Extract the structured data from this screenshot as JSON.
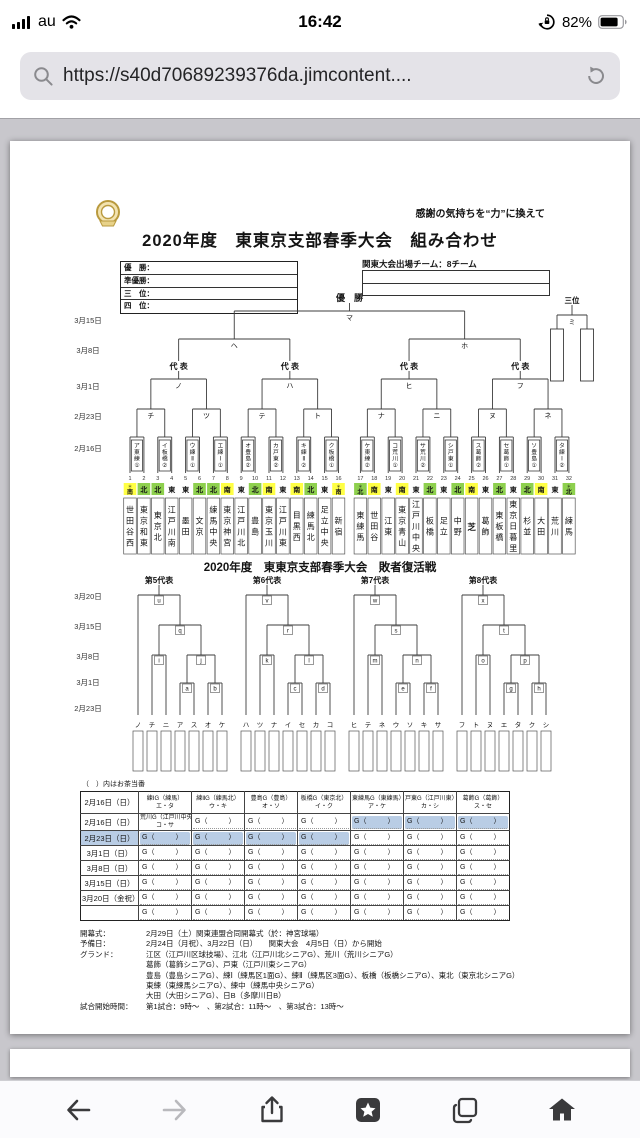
{
  "status_bar": {
    "carrier": "au",
    "time": "16:42",
    "battery_percent": "82%"
  },
  "url_bar": {
    "url": "https://s40d70689239376da.jimcontent...."
  },
  "document": {
    "slogan": "感謝の気持ちを“力”に換えて",
    "title": "2020年度　東東京支部春季大会　組み合わせ",
    "results_table": {
      "rows": [
        "優　勝：",
        "準優勝：",
        "三　位：",
        "四　位："
      ]
    },
    "kanto_note": "関東大会出場チーム：8チーム",
    "main_bracket": {
      "champion_label": "優　勝",
      "representative_label": "代 表",
      "third_place_label": "三位",
      "third_place_game": "ミ",
      "dates": [
        "3月15日",
        "3月8日",
        "3月1日",
        "2月23日",
        "2月16日"
      ],
      "final": "マ",
      "semifinals": [
        "ヘ",
        "ホ"
      ],
      "quarterfinals": [
        "ノ",
        "ハ",
        "ヒ",
        "フ"
      ],
      "round2": [
        "チ",
        "ツ",
        "テ",
        "ト",
        "ナ",
        "ニ",
        "ヌ",
        "ネ"
      ],
      "round1": [
        {
          "label": "ア",
          "venue": "東練①"
        },
        {
          "label": "イ",
          "venue": "板橋②"
        },
        {
          "label": "ウ",
          "venue": "練Ⅱ①"
        },
        {
          "label": "エ",
          "venue": "練Ⅰ①"
        },
        {
          "label": "オ",
          "venue": "豊島②"
        },
        {
          "label": "カ",
          "venue": "戸東②"
        },
        {
          "label": "キ",
          "venue": "練Ⅱ②"
        },
        {
          "label": "ク",
          "venue": "板橋①"
        },
        {
          "label": "ケ",
          "venue": "東練②"
        },
        {
          "label": "コ",
          "venue": "荒川①"
        },
        {
          "label": "サ",
          "venue": "荒川②"
        },
        {
          "label": "シ",
          "venue": "戸東①"
        },
        {
          "label": "ス",
          "venue": "葛飾②"
        },
        {
          "label": "セ",
          "venue": "葛飾①"
        },
        {
          "label": "ソ",
          "venue": "豊島①"
        },
        {
          "label": "タ",
          "venue": "練Ⅰ②"
        }
      ],
      "entries": [
        {
          "no": 1,
          "block": "＊南",
          "block_color": "yellow",
          "team": "世田谷西"
        },
        {
          "no": 2,
          "block": "北",
          "block_color": "green",
          "team": "東京和東"
        },
        {
          "no": 3,
          "block": "北",
          "block_color": "green",
          "team": "東京北"
        },
        {
          "no": 4,
          "block": "東",
          "block_color": "white",
          "team": "江戸川南"
        },
        {
          "no": 5,
          "block": "東",
          "block_color": "white",
          "team": "墨田"
        },
        {
          "no": 6,
          "block": "北",
          "block_color": "green",
          "team": "文京"
        },
        {
          "no": 7,
          "block": "北",
          "block_color": "green",
          "team": "練馬中央"
        },
        {
          "no": 8,
          "block": "南",
          "block_color": "yellow",
          "team": "東京神宮"
        },
        {
          "no": 9,
          "block": "東",
          "block_color": "white",
          "team": "江戸川北"
        },
        {
          "no": 10,
          "block": "北",
          "block_color": "green",
          "team": "豊島"
        },
        {
          "no": 11,
          "block": "南",
          "block_color": "yellow",
          "team": "東京玉川"
        },
        {
          "no": 12,
          "block": "東",
          "block_color": "white",
          "team": "江戸川東"
        },
        {
          "no": 13,
          "block": "南",
          "block_color": "yellow",
          "team": "目黒西"
        },
        {
          "no": 14,
          "block": "北",
          "block_color": "green",
          "team": "練馬北"
        },
        {
          "no": 15,
          "block": "東",
          "block_color": "white",
          "team": "足立中央"
        },
        {
          "no": 16,
          "block": "＊南",
          "block_color": "yellow",
          "team": "新宿"
        },
        {
          "no": 17,
          "block": "＊北",
          "block_color": "green",
          "team": "東練馬"
        },
        {
          "no": 18,
          "block": "南",
          "block_color": "yellow",
          "team": "世田谷"
        },
        {
          "no": 19,
          "block": "東",
          "block_color": "white",
          "team": "江東"
        },
        {
          "no": 20,
          "block": "南",
          "block_color": "yellow",
          "team": "東京青山"
        },
        {
          "no": 21,
          "block": "東",
          "block_color": "white",
          "team": "江戸川中央"
        },
        {
          "no": 22,
          "block": "北",
          "block_color": "green",
          "team": "板橋"
        },
        {
          "no": 23,
          "block": "東",
          "block_color": "white",
          "team": "足立"
        },
        {
          "no": 24,
          "block": "北",
          "block_color": "green",
          "team": "中野"
        },
        {
          "no": 25,
          "block": "南",
          "block_color": "yellow",
          "team": "芝"
        },
        {
          "no": 26,
          "block": "東",
          "block_color": "white",
          "team": "葛飾"
        },
        {
          "no": 27,
          "block": "北",
          "block_color": "green",
          "team": "東板橋"
        },
        {
          "no": 28,
          "block": "東",
          "block_color": "white",
          "team": "東京日暮里"
        },
        {
          "no": 29,
          "block": "北",
          "block_color": "green",
          "team": "杉並"
        },
        {
          "no": 30,
          "block": "南",
          "block_color": "yellow",
          "team": "大田"
        },
        {
          "no": 31,
          "block": "東",
          "block_color": "white",
          "team": "荒川"
        },
        {
          "no": 32,
          "block": "＊北",
          "block_color": "green",
          "team": "練馬"
        }
      ]
    },
    "revival": {
      "title": "2020年度　東東京支部春季大会　敗者復活戦",
      "dates": [
        "3月20日",
        "3月15日",
        "3月8日",
        "3月1日",
        "2月23日"
      ],
      "groups": [
        {
          "title": "第5代表",
          "games": [
            "u",
            "q",
            "i",
            "j",
            "a",
            "b"
          ],
          "entries": [
            "ノ",
            "チ",
            "ニ",
            "ア",
            "ス",
            "オ",
            "ケ"
          ]
        },
        {
          "title": "第6代表",
          "games": [
            "v",
            "r",
            "k",
            "l",
            "c",
            "d"
          ],
          "entries": [
            "ハ",
            "ツ",
            "ナ",
            "イ",
            "セ",
            "カ",
            "コ"
          ]
        },
        {
          "title": "第7代表",
          "games": [
            "w",
            "s",
            "m",
            "n",
            "e",
            "f"
          ],
          "entries": [
            "ヒ",
            "テ",
            "ネ",
            "ウ",
            "ソ",
            "キ",
            "サ"
          ]
        },
        {
          "title": "第8代表",
          "games": [
            "x",
            "t",
            "o",
            "p",
            "g",
            "h"
          ],
          "entries": [
            "フ",
            "ト",
            "ヌ",
            "エ",
            "タ",
            "ク",
            "シ"
          ]
        }
      ]
    },
    "schedule": {
      "caption": "（　）内はお茶当番",
      "rows": [
        {
          "date": "2月16日（日）",
          "date_hl": false,
          "cells": [
            {
              "t": "練ⅠG（練馬）\nエ・タ",
              "hl": false
            },
            {
              "t": "練ⅡG（練馬北）\nウ・キ",
              "hl": false
            },
            {
              "t": "豊島G（豊島）\nオ・ソ",
              "hl": false
            },
            {
              "t": "板橋G（東京北）\nイ・ク",
              "hl": false
            },
            {
              "t": "東練馬G（東練馬）\nア・ケ",
              "hl": false
            },
            {
              "t": "戸東G（江戸川東）\nカ・シ",
              "hl": false
            },
            {
              "t": "葛飾G（葛飾）\nス・セ",
              "hl": false
            }
          ]
        },
        {
          "date": "2月16日（日）",
          "date_hl": false,
          "cells": [
            {
              "t": "荒川G（江戸川中央）\nコ・サ",
              "hl": false
            },
            {
              "t": "G（　　　）",
              "hl": false
            },
            {
              "t": "G（　　　）",
              "hl": false
            },
            {
              "t": "G（　　　）",
              "hl": false
            },
            {
              "t": "G（　　　）",
              "hl": true
            },
            {
              "t": "G（　　　）",
              "hl": true
            },
            {
              "t": "G（　　　）",
              "hl": true
            }
          ]
        },
        {
          "date": "2月23日（日）",
          "date_hl": true,
          "cells": [
            {
              "t": "G（　　　）",
              "hl": true
            },
            {
              "t": "G（　　　）",
              "hl": true
            },
            {
              "t": "G（　　　）",
              "hl": true
            },
            {
              "t": "G（　　　）",
              "hl": true
            },
            {
              "t": "G（　　　）",
              "hl": false
            },
            {
              "t": "G（　　　）",
              "hl": false
            },
            {
              "t": "G（　　　）",
              "hl": false
            }
          ]
        },
        {
          "date": "3月1日（日）",
          "date_hl": false,
          "cells": [
            {
              "t": "G（　　　）",
              "hl": false
            },
            {
              "t": "G（　　　）",
              "hl": false
            },
            {
              "t": "G（　　　）",
              "hl": false
            },
            {
              "t": "G（　　　）",
              "hl": false
            },
            {
              "t": "G（　　　）",
              "hl": false
            },
            {
              "t": "G（　　　）",
              "hl": false
            },
            {
              "t": "G（　　　）",
              "hl": false
            }
          ]
        },
        {
          "date": "3月8日（日）",
          "date_hl": false,
          "cells": [
            {
              "t": "G（　　　）",
              "hl": false
            },
            {
              "t": "G（　　　）",
              "hl": false
            },
            {
              "t": "G（　　　）",
              "hl": false
            },
            {
              "t": "G（　　　）",
              "hl": false
            },
            {
              "t": "G（　　　）",
              "hl": false
            },
            {
              "t": "G（　　　）",
              "hl": false
            },
            {
              "t": "G（　　　）",
              "hl": false
            }
          ]
        },
        {
          "date": "3月15日（日）",
          "date_hl": false,
          "cells": [
            {
              "t": "G（　　　）",
              "hl": false
            },
            {
              "t": "G（　　　）",
              "hl": false
            },
            {
              "t": "G（　　　）",
              "hl": false
            },
            {
              "t": "G（　　　）",
              "hl": false
            },
            {
              "t": "G（　　　）",
              "hl": false
            },
            {
              "t": "G（　　　）",
              "hl": false
            },
            {
              "t": "G（　　　）",
              "hl": false
            }
          ]
        },
        {
          "date": "3月20日（金祝）",
          "date_hl": false,
          "cells": [
            {
              "t": "G（　　　）",
              "hl": false
            },
            {
              "t": "G（　　　）",
              "hl": false
            },
            {
              "t": "G（　　　）",
              "hl": false
            },
            {
              "t": "G（　　　）",
              "hl": false
            },
            {
              "t": "G（　　　）",
              "hl": false
            },
            {
              "t": "G（　　　）",
              "hl": false
            },
            {
              "t": "G（　　　）",
              "hl": false
            }
          ]
        },
        {
          "date": "",
          "date_hl": false,
          "cells": [
            {
              "t": "G（　　　）",
              "hl": false
            },
            {
              "t": "G（　　　）",
              "hl": false
            },
            {
              "t": "G（　　　）",
              "hl": false
            },
            {
              "t": "G（　　　）",
              "hl": false
            },
            {
              "t": "G（　　　）",
              "hl": false
            },
            {
              "t": "G（　　　）",
              "hl": false
            },
            {
              "t": "G（　　　）",
              "hl": false
            }
          ]
        }
      ]
    },
    "footer": {
      "lines": [
        {
          "label": "開幕式：",
          "text": "2月29日（土）関東連盟合同開幕式（於：神宮球場）"
        },
        {
          "label": "予備日：",
          "text": "2月24日（月祝）、3月22日（日）　　関東大会　4月5日（日）から開始"
        },
        {
          "label": "グランド：",
          "text": "江区（江戸川区球技場）、江北（江戸川北シニアG）、荒川（荒川シニアG）"
        },
        {
          "label": "",
          "text": "葛飾（葛飾シニアG）、戸東（江戸川東シニアG）"
        },
        {
          "label": "",
          "text": "豊島（豊島シニアG）、練Ⅰ（練馬区1面G）、練Ⅱ（練馬区3面G）、板橋（板橋シニアG）、東北（東京北シニアG）"
        },
        {
          "label": "",
          "text": "東練（東練馬シニアG）、練中（練馬中央シニアG）"
        },
        {
          "label": "",
          "text": "大田（大田シニアG）、日B（多摩川日B）"
        },
        {
          "label": "試合開始時間：",
          "text": "第1試合：9時～　、第2試合：11時～　、第3試合：13時～"
        }
      ]
    }
  },
  "colors": {
    "block_green": "#8ed04e",
    "block_yellow": "#ffff44",
    "highlight_blue": "#b9cde5"
  }
}
